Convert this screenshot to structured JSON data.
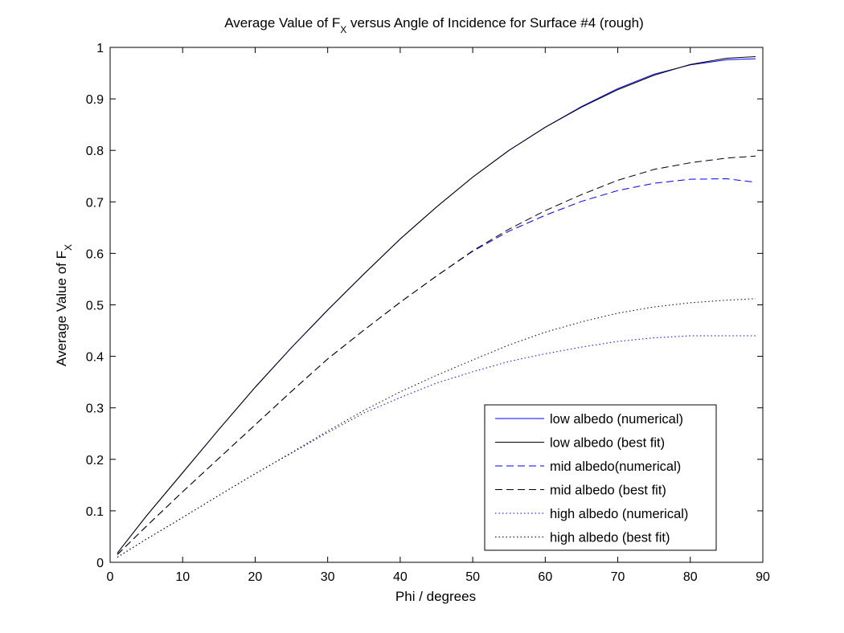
{
  "chart_data": {
    "type": "line",
    "title": {
      "main": "Average Value of F",
      "subscript": "X",
      "rest": " versus Angle of Incidence for Surface #4 (rough)"
    },
    "xlabel": "Phi / degrees",
    "ylabel": {
      "main": "Average Value of F",
      "subscript": "X"
    },
    "xlim": [
      0,
      90
    ],
    "ylim": [
      0,
      1
    ],
    "xticks": [
      0,
      10,
      20,
      30,
      40,
      50,
      60,
      70,
      80,
      90
    ],
    "yticks": [
      0,
      0.1,
      0.2,
      0.3,
      0.4,
      0.5,
      0.6,
      0.7,
      0.8,
      0.9,
      1
    ],
    "ytick_labels": [
      "0",
      "0.1",
      "0.2",
      "0.3",
      "0.4",
      "0.5",
      "0.6",
      "0.7",
      "0.8",
      "0.9",
      "1"
    ],
    "grid": false,
    "legend_position": "bottom-right",
    "x": [
      1,
      5,
      10,
      15,
      20,
      25,
      30,
      35,
      40,
      45,
      50,
      55,
      60,
      65,
      70,
      75,
      80,
      85,
      89
    ],
    "series": [
      {
        "name": "low albedo (numerical)",
        "color": "#0000ff",
        "style": "solid",
        "values": [
          0.018,
          0.09,
          0.174,
          0.258,
          0.34,
          0.417,
          0.49,
          0.56,
          0.628,
          0.69,
          0.748,
          0.8,
          0.845,
          0.885,
          0.92,
          0.948,
          0.966,
          0.976,
          0.978
        ]
      },
      {
        "name": "low albedo (best fit)",
        "color": "#000000",
        "style": "solid",
        "values": [
          0.018,
          0.09,
          0.174,
          0.258,
          0.34,
          0.417,
          0.49,
          0.56,
          0.628,
          0.69,
          0.748,
          0.8,
          0.845,
          0.884,
          0.918,
          0.946,
          0.967,
          0.979,
          0.982
        ]
      },
      {
        "name": "mid albedo(numerical)",
        "color": "#0000ff",
        "style": "dashed",
        "values": [
          0.015,
          0.07,
          0.137,
          0.202,
          0.267,
          0.332,
          0.395,
          0.451,
          0.505,
          0.556,
          0.604,
          0.643,
          0.674,
          0.701,
          0.722,
          0.736,
          0.744,
          0.745,
          0.738
        ]
      },
      {
        "name": "mid albedo (best fit)",
        "color": "#000000",
        "style": "dashed",
        "values": [
          0.015,
          0.07,
          0.137,
          0.202,
          0.267,
          0.332,
          0.395,
          0.451,
          0.505,
          0.556,
          0.605,
          0.647,
          0.683,
          0.714,
          0.742,
          0.763,
          0.776,
          0.785,
          0.789
        ]
      },
      {
        "name": "high albedo (numerical)",
        "color": "#0000ff",
        "style": "dotted",
        "values": [
          0.01,
          0.045,
          0.087,
          0.13,
          0.172,
          0.212,
          0.252,
          0.29,
          0.32,
          0.348,
          0.37,
          0.39,
          0.405,
          0.418,
          0.429,
          0.436,
          0.44,
          0.44,
          0.44
        ]
      },
      {
        "name": "high albedo (best fit)",
        "color": "#000000",
        "style": "dotted",
        "values": [
          0.01,
          0.045,
          0.087,
          0.13,
          0.172,
          0.213,
          0.255,
          0.295,
          0.331,
          0.363,
          0.393,
          0.422,
          0.447,
          0.467,
          0.484,
          0.496,
          0.504,
          0.509,
          0.512
        ]
      }
    ]
  }
}
